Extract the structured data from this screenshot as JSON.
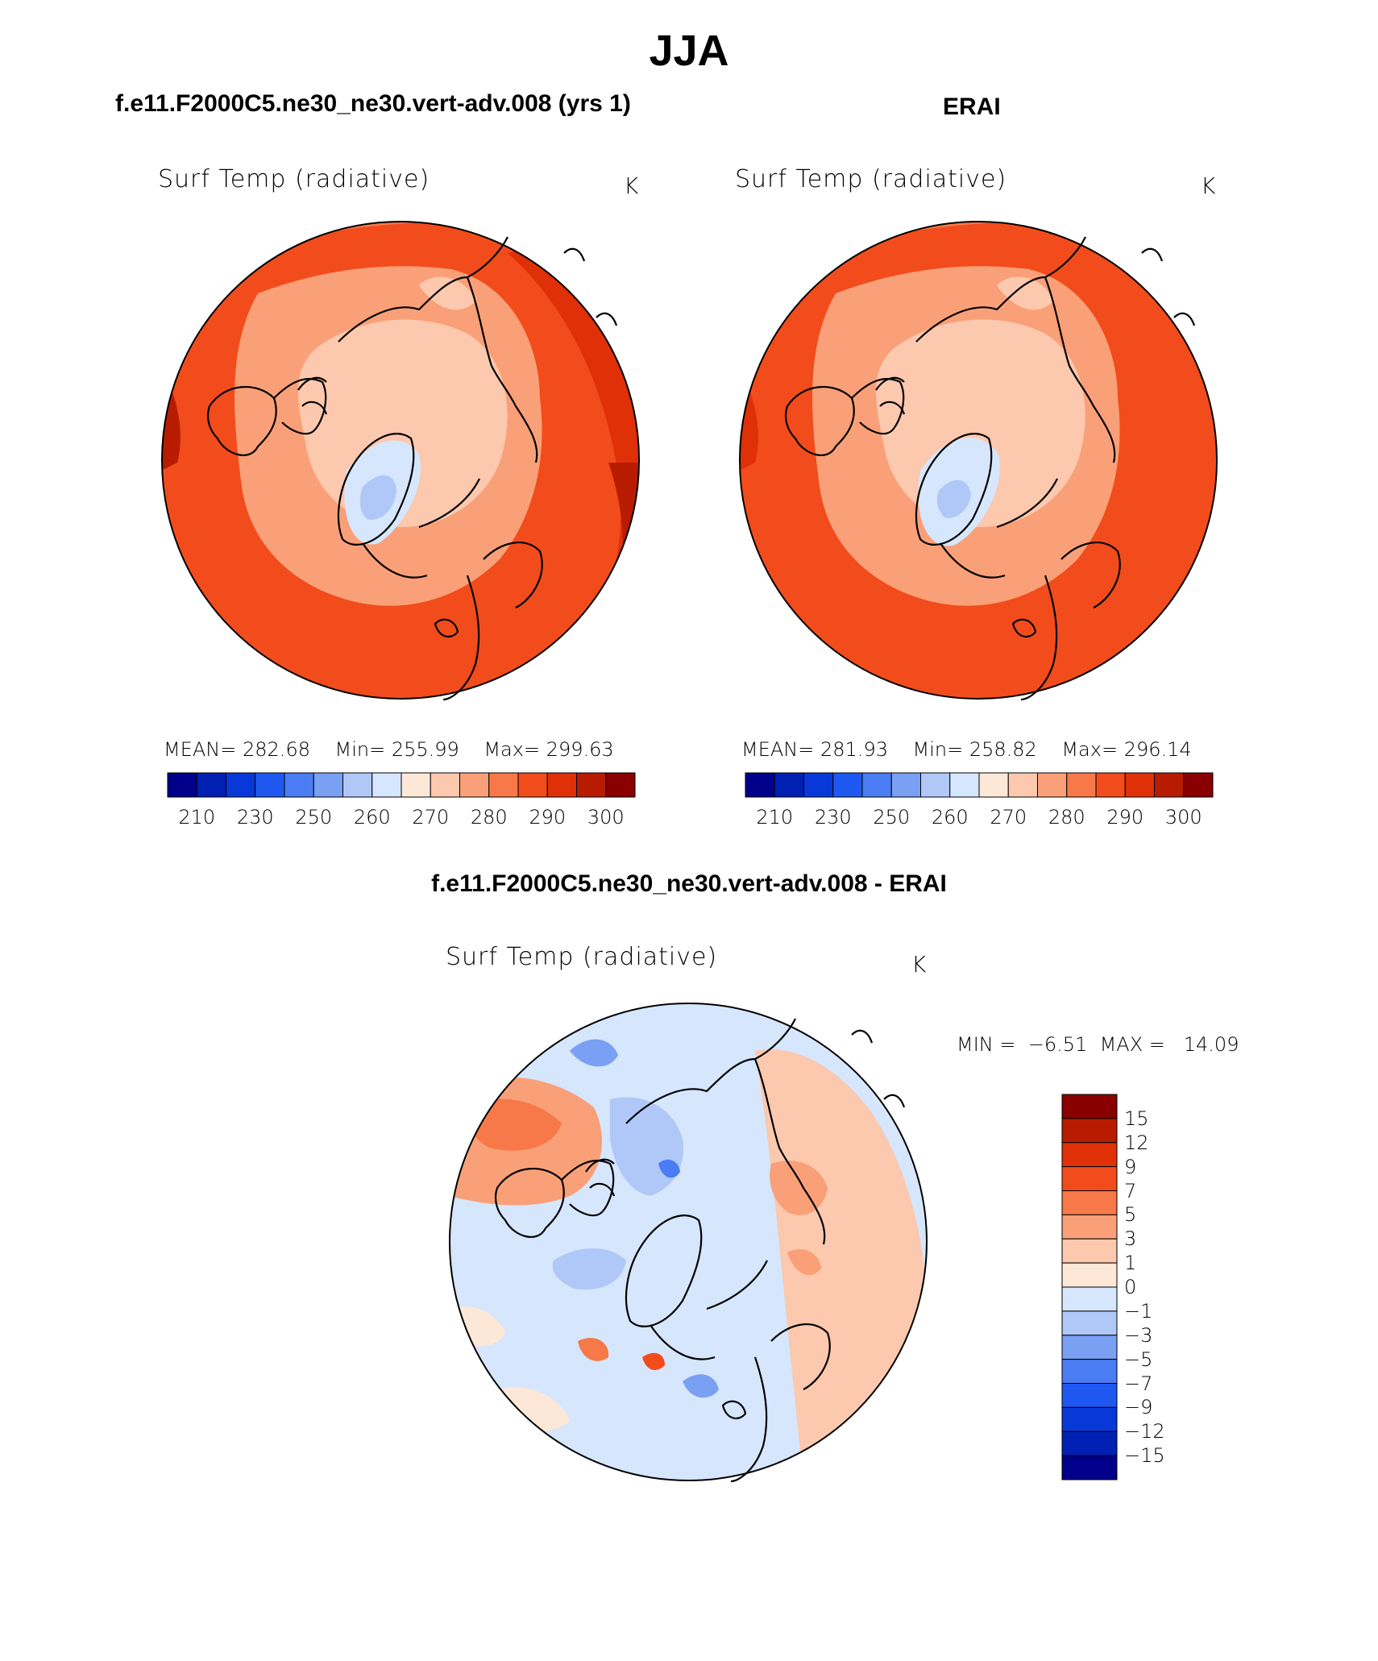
{
  "title": "JJA",
  "panels": {
    "model": {
      "header": "f.e11.F2000C5.ne30_ne30.vert-adv.008 (yrs 1)",
      "var_label": "Surf Temp (radiative)",
      "units": "K",
      "mean_label": "MEAN=",
      "mean_value": "282.68",
      "min_label": "Min=",
      "min_value": "255.99",
      "max_label": "Max=",
      "max_value": "299.63"
    },
    "obs": {
      "header": "ERAI",
      "var_label": "Surf Temp (radiative)",
      "units": "K",
      "mean_label": "MEAN=",
      "mean_value": "281.93",
      "min_label": "Min=",
      "min_value": "258.82",
      "max_label": "Max=",
      "max_value": "296.14"
    },
    "diff": {
      "header": "f.e11.F2000C5.ne30_ne30.vert-adv.008 - ERAI",
      "var_label": "Surf Temp (radiative)",
      "units": "K",
      "min_label": "MIN =",
      "min_value": "−6.51",
      "max_label": "MAX =",
      "max_value": "14.09"
    }
  },
  "colorbar_abs": {
    "ticks": [
      "210",
      "230",
      "250",
      "260",
      "270",
      "280",
      "290",
      "300"
    ],
    "colors": [
      "#00008a",
      "#0020b4",
      "#0838d8",
      "#1e58f0",
      "#4a7cf4",
      "#7aa0f4",
      "#b0c8f8",
      "#d6e6fc",
      "#fde8d8",
      "#fcc8ae",
      "#f9a078",
      "#f77848",
      "#f24c1c",
      "#e03008",
      "#b81c00",
      "#8a0000"
    ]
  },
  "colorbar_diff": {
    "ticks": [
      "15",
      "12",
      "9",
      "7",
      "5",
      "3",
      "1",
      "0",
      "−1",
      "−3",
      "−5",
      "−7",
      "−9",
      "−12",
      "−15"
    ],
    "colors": [
      "#8a0000",
      "#b81c00",
      "#e03008",
      "#f24c1c",
      "#f77848",
      "#f9a078",
      "#fcc8ae",
      "#fde8d8",
      "#d6e6fc",
      "#b0c8f8",
      "#7aa0f4",
      "#4a7cf4",
      "#1e58f0",
      "#0838d8",
      "#0020b4",
      "#00008a"
    ]
  }
}
